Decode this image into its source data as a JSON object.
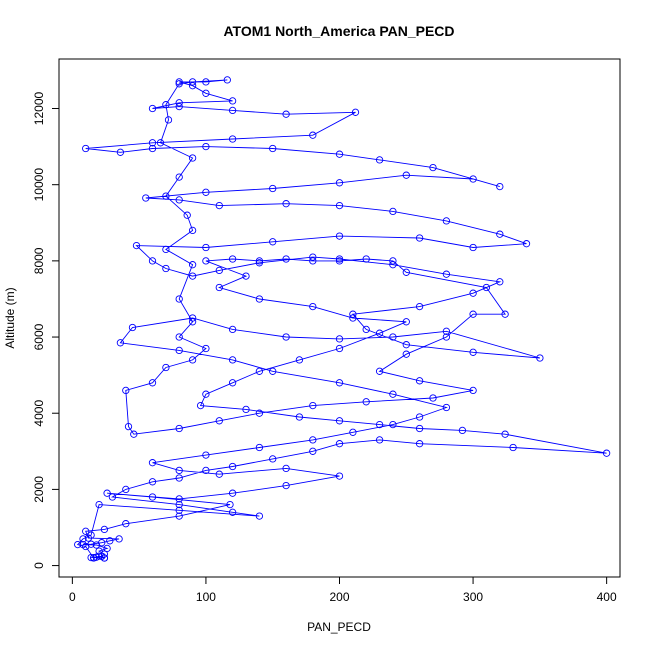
{
  "chart_data": {
    "type": "line",
    "title": "ATOM1 North_America PAN_PECD",
    "xlabel": "PAN_PECD",
    "ylabel": "Altitude (m)",
    "xlim": [
      -10,
      410
    ],
    "ylim": [
      -300,
      13300
    ],
    "x_ticks": [
      0,
      100,
      200,
      300,
      400
    ],
    "y_ticks": [
      0,
      2000,
      4000,
      6000,
      8000,
      10000,
      12000
    ],
    "grid": false,
    "color": "#0000ff",
    "markers": "open-circle",
    "series": [
      {
        "values": [
          [
            24,
            200
          ],
          [
            16,
            210
          ],
          [
            14,
            210
          ],
          [
            18,
            220
          ],
          [
            22,
            240
          ],
          [
            24,
            300
          ],
          [
            20,
            380
          ],
          [
            26,
            450
          ],
          [
            18,
            540
          ],
          [
            8,
            550
          ],
          [
            14,
            560
          ],
          [
            22,
            600
          ],
          [
            28,
            650
          ],
          [
            35,
            700
          ],
          [
            12,
            720
          ],
          [
            10,
            900
          ],
          [
            24,
            950
          ],
          [
            40,
            1100
          ],
          [
            80,
            1300
          ],
          [
            118,
            1600
          ],
          [
            60,
            1800
          ],
          [
            26,
            1900
          ],
          [
            80,
            1750
          ],
          [
            120,
            1900
          ],
          [
            160,
            2100
          ],
          [
            200,
            2350
          ],
          [
            160,
            2550
          ],
          [
            110,
            2400
          ],
          [
            80,
            2500
          ],
          [
            60,
            2700
          ],
          [
            100,
            2900
          ],
          [
            140,
            3100
          ],
          [
            180,
            3300
          ],
          [
            210,
            3500
          ],
          [
            240,
            3700
          ],
          [
            260,
            3900
          ],
          [
            280,
            4150
          ],
          [
            240,
            4500
          ],
          [
            200,
            4800
          ],
          [
            150,
            5100
          ],
          [
            120,
            5400
          ],
          [
            80,
            5650
          ],
          [
            36,
            5850
          ],
          [
            45,
            6250
          ],
          [
            90,
            6500
          ],
          [
            120,
            6200
          ],
          [
            160,
            6000
          ],
          [
            200,
            5950
          ],
          [
            240,
            6000
          ],
          [
            280,
            6150
          ],
          [
            350,
            5450
          ],
          [
            300,
            5600
          ],
          [
            250,
            5800
          ],
          [
            220,
            6200
          ],
          [
            210,
            6600
          ],
          [
            260,
            6800
          ],
          [
            300,
            7150
          ],
          [
            320,
            7450
          ],
          [
            280,
            7650
          ],
          [
            240,
            7900
          ],
          [
            200,
            8050
          ],
          [
            180,
            8100
          ],
          [
            140,
            7950
          ],
          [
            110,
            7750
          ],
          [
            90,
            7600
          ],
          [
            70,
            7800
          ],
          [
            60,
            8000
          ],
          [
            48,
            8400
          ],
          [
            100,
            8350
          ],
          [
            150,
            8500
          ],
          [
            200,
            8650
          ],
          [
            260,
            8600
          ],
          [
            300,
            8350
          ],
          [
            340,
            8450
          ],
          [
            320,
            8700
          ],
          [
            280,
            9050
          ],
          [
            240,
            9300
          ],
          [
            200,
            9450
          ],
          [
            160,
            9500
          ],
          [
            110,
            9450
          ],
          [
            80,
            9600
          ],
          [
            55,
            9650
          ],
          [
            100,
            9800
          ],
          [
            150,
            9900
          ],
          [
            200,
            10050
          ],
          [
            250,
            10250
          ],
          [
            300,
            10150
          ],
          [
            320,
            9950
          ],
          [
            270,
            10450
          ],
          [
            230,
            10650
          ],
          [
            200,
            10800
          ],
          [
            150,
            10950
          ],
          [
            100,
            11000
          ],
          [
            60,
            10950
          ],
          [
            36,
            10850
          ],
          [
            10,
            10950
          ],
          [
            60,
            11100
          ],
          [
            120,
            11200
          ],
          [
            180,
            11300
          ],
          [
            212,
            11900
          ],
          [
            160,
            11850
          ],
          [
            120,
            11950
          ],
          [
            80,
            12050
          ],
          [
            60,
            12000
          ],
          [
            80,
            12150
          ],
          [
            120,
            12200
          ],
          [
            100,
            12400
          ],
          [
            90,
            12600
          ],
          [
            80,
            12700
          ],
          [
            100,
            12700
          ],
          [
            116,
            12750
          ],
          [
            90,
            12700
          ],
          [
            80,
            12650
          ],
          [
            70,
            12100
          ],
          [
            72,
            11700
          ],
          [
            66,
            11100
          ],
          [
            90,
            10700
          ],
          [
            80,
            10200
          ],
          [
            70,
            9700
          ],
          [
            86,
            9200
          ],
          [
            90,
            8800
          ],
          [
            70,
            8300
          ],
          [
            90,
            7900
          ],
          [
            80,
            7000
          ],
          [
            90,
            6400
          ],
          [
            80,
            6000
          ],
          [
            100,
            5700
          ],
          [
            90,
            5400
          ],
          [
            70,
            5200
          ],
          [
            60,
            4800
          ],
          [
            40,
            4600
          ],
          [
            42,
            3650
          ],
          [
            46,
            3450
          ],
          [
            80,
            3600
          ],
          [
            110,
            3800
          ],
          [
            140,
            4000
          ],
          [
            180,
            4200
          ],
          [
            220,
            4300
          ],
          [
            270,
            4400
          ],
          [
            300,
            4600
          ],
          [
            260,
            4850
          ],
          [
            230,
            5100
          ],
          [
            250,
            5550
          ],
          [
            280,
            6000
          ],
          [
            300,
            6600
          ],
          [
            324,
            6600
          ],
          [
            310,
            7300
          ],
          [
            250,
            7700
          ],
          [
            240,
            8000
          ],
          [
            220,
            8050
          ],
          [
            200,
            8000
          ],
          [
            180,
            8000
          ],
          [
            160,
            8050
          ],
          [
            140,
            8000
          ],
          [
            120,
            8050
          ],
          [
            100,
            8000
          ],
          [
            130,
            7600
          ],
          [
            110,
            7300
          ],
          [
            140,
            7000
          ],
          [
            180,
            6800
          ],
          [
            210,
            6500
          ],
          [
            250,
            6400
          ],
          [
            230,
            6100
          ],
          [
            200,
            5700
          ],
          [
            170,
            5400
          ],
          [
            140,
            5100
          ],
          [
            120,
            4800
          ],
          [
            100,
            4500
          ],
          [
            96,
            4200
          ],
          [
            130,
            4100
          ],
          [
            170,
            3900
          ],
          [
            200,
            3800
          ],
          [
            230,
            3700
          ],
          [
            260,
            3600
          ],
          [
            292,
            3550
          ],
          [
            324,
            3450
          ],
          [
            400,
            2950
          ],
          [
            330,
            3100
          ],
          [
            260,
            3200
          ],
          [
            230,
            3300
          ],
          [
            200,
            3200
          ],
          [
            180,
            3000
          ],
          [
            150,
            2800
          ],
          [
            120,
            2600
          ],
          [
            100,
            2500
          ],
          [
            80,
            2300
          ],
          [
            60,
            2200
          ],
          [
            40,
            2000
          ],
          [
            30,
            1800
          ],
          [
            80,
            1600
          ],
          [
            120,
            1400
          ],
          [
            140,
            1300
          ],
          [
            80,
            1450
          ],
          [
            20,
            1600
          ],
          [
            14,
            800
          ],
          [
            8,
            700
          ],
          [
            4,
            550
          ],
          [
            10,
            500
          ],
          [
            16,
            200
          ],
          [
            20,
            250
          ],
          [
            24,
            200
          ]
        ]
      }
    ]
  }
}
